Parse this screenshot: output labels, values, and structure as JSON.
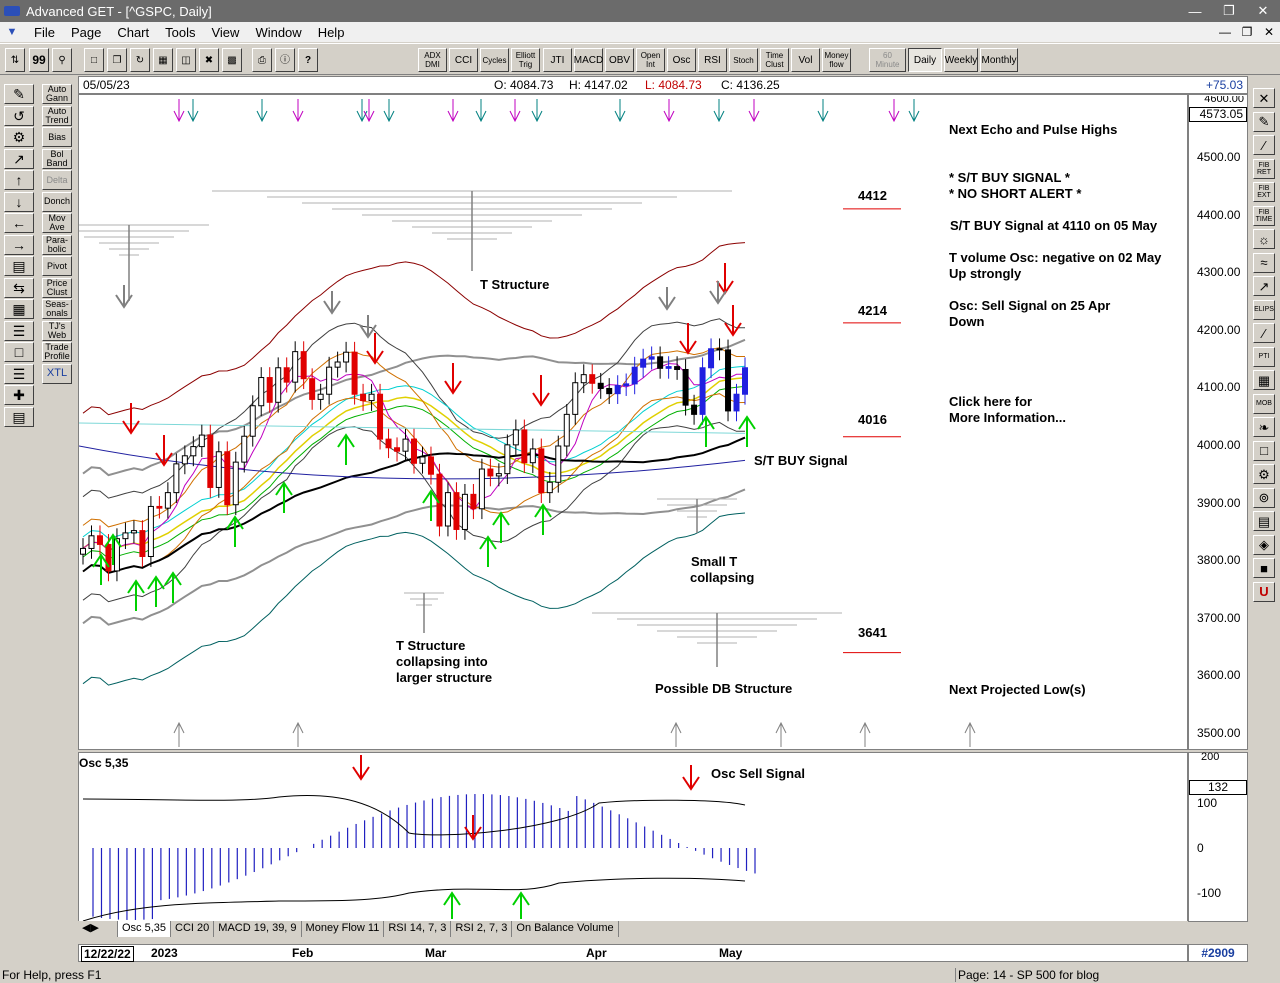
{
  "window": {
    "title": "Advanced GET - [^GSPC, Daily]"
  },
  "menu": [
    "File",
    "Page",
    "Chart",
    "Tools",
    "View",
    "Window",
    "Help"
  ],
  "toolbar": {
    "indicators": [
      "ADX DMI",
      "CCI",
      "Cycles",
      "Elliott Trig",
      "JTI",
      "MACD",
      "OBV",
      "Open Int",
      "Osc",
      "RSI",
      "Stoch",
      "Time Clust",
      "Vol",
      "Money flow"
    ],
    "periods": [
      "60 Minute",
      "Daily",
      "Weekly",
      "Monthly"
    ]
  },
  "left_tools": [
    "Auto Gann",
    "Auto Trend",
    "Bias",
    "Bol Band",
    "Delta",
    "Donch",
    "Mov Ave",
    "Para- bolic",
    "Pivot",
    "Price Clust",
    "Seas- onals",
    "TJ's Web",
    "Trade Profile",
    "XTL"
  ],
  "left_icons": [
    "RESET",
    "STUDY",
    "Elliott",
    "LINES",
    "GANN",
    "FIB"
  ],
  "right_tools": [
    "FIB RET",
    "FIB EXT",
    "FIB TIME",
    "PTI",
    "MOB",
    "ELIPS"
  ],
  "header": {
    "date": "05/05/23",
    "open": "O: 4084.73",
    "high": "H: 4147.02",
    "low": "L: 4084.73",
    "close": "C: 4136.25",
    "change": "+75.03"
  },
  "price_axis": {
    "current": "4573.05",
    "top": "4600.00",
    "ticks": [
      "4500.00",
      "4400.00",
      "4300.00",
      "4200.00",
      "4100.00",
      "4000.00",
      "3900.00",
      "3800.00",
      "3700.00",
      "3600.00",
      "3500.00"
    ]
  },
  "annotations": {
    "next_echo": "Next Echo and Pulse Highs",
    "buy_signal": "* S/T BUY SIGNAL *",
    "no_short": "* NO SHORT ALERT *",
    "st_buy_at": "S/T BUY Signal at 4110 on 05 May",
    "tvol_1": "T volume Osc: negative on 02 May",
    "tvol_2": "Up strongly",
    "osc_1": "Osc: Sell Signal on 25 Apr",
    "osc_2": "Down",
    "click_1": "Click here for",
    "click_2": "More Information...",
    "st_buy_label": "S/T BUY Signal",
    "t_structure": "T Structure",
    "small_t_1": "Small T",
    "small_t_2": "collapsing",
    "t_coll_1": "T Structure",
    "t_coll_2": "collapsing into",
    "t_coll_3": "larger structure",
    "possible_db": "Possible DB Structure",
    "next_low": "Next Projected Low(s)",
    "lvl_4412": "4412",
    "lvl_4214": "4214",
    "lvl_4016": "4016",
    "lvl_3641": "3641"
  },
  "osc": {
    "title": "Osc 5,35",
    "sell_signal": "Osc Sell Signal",
    "current": "132",
    "ticks": [
      "200",
      "100",
      "0",
      "-100"
    ]
  },
  "tabs": [
    "Osc 5,35",
    "CCI 20",
    "MACD 19, 39, 9",
    "Money Flow 11",
    "RSI 14, 7, 3",
    "RSI 2, 7, 3",
    "On Balance Volume"
  ],
  "dates": {
    "start": "12/22/22",
    "y2023": "2023",
    "feb": "Feb",
    "mar": "Mar",
    "apr": "Apr",
    "may": "May",
    "count": "#2909"
  },
  "status": {
    "help": "For Help, press F1",
    "page": "Page: 14 - SP 500 for blog"
  },
  "chart_data": {
    "type": "candlestick",
    "symbol": "^GSPC",
    "interval": "Daily",
    "ylim": [
      3470,
      4610
    ],
    "x_range": [
      "2022-12-22",
      "2023-05-05"
    ],
    "last_bar": {
      "date": "2023-05-05",
      "open": 4084.73,
      "high": 4147.02,
      "low": 4084.73,
      "close": 4136.25
    },
    "levels": [
      4412,
      4214,
      4016,
      3641
    ],
    "approx_close": [
      3822,
      3844,
      3829,
      3783,
      3839,
      3849,
      3853,
      3808,
      3895,
      3892,
      3919,
      3969,
      3983,
      3999,
      4019,
      3928,
      3990,
      3898,
      3972,
      4017,
      4070,
      4119,
      4076,
      4136,
      4111,
      4164,
      4117,
      4081,
      4090,
      4137,
      4146,
      4163,
      4090,
      4079,
      4090,
      4012,
      3997,
      3991,
      4012,
      3970,
      3981,
      3951,
      3861,
      3919,
      3855,
      3916,
      3891,
      3960,
      3948,
      3952,
      4002,
      4028,
      3971,
      3995,
      3919,
      3937,
      4000,
      4055,
      4110,
      4124,
      4109,
      4100,
      4091,
      4105,
      4108,
      4137,
      4151,
      4155,
      4135,
      4138,
      4133,
      4071,
      4055,
      4136,
      4169,
      4167,
      4061,
      4090,
      4136
    ]
  }
}
